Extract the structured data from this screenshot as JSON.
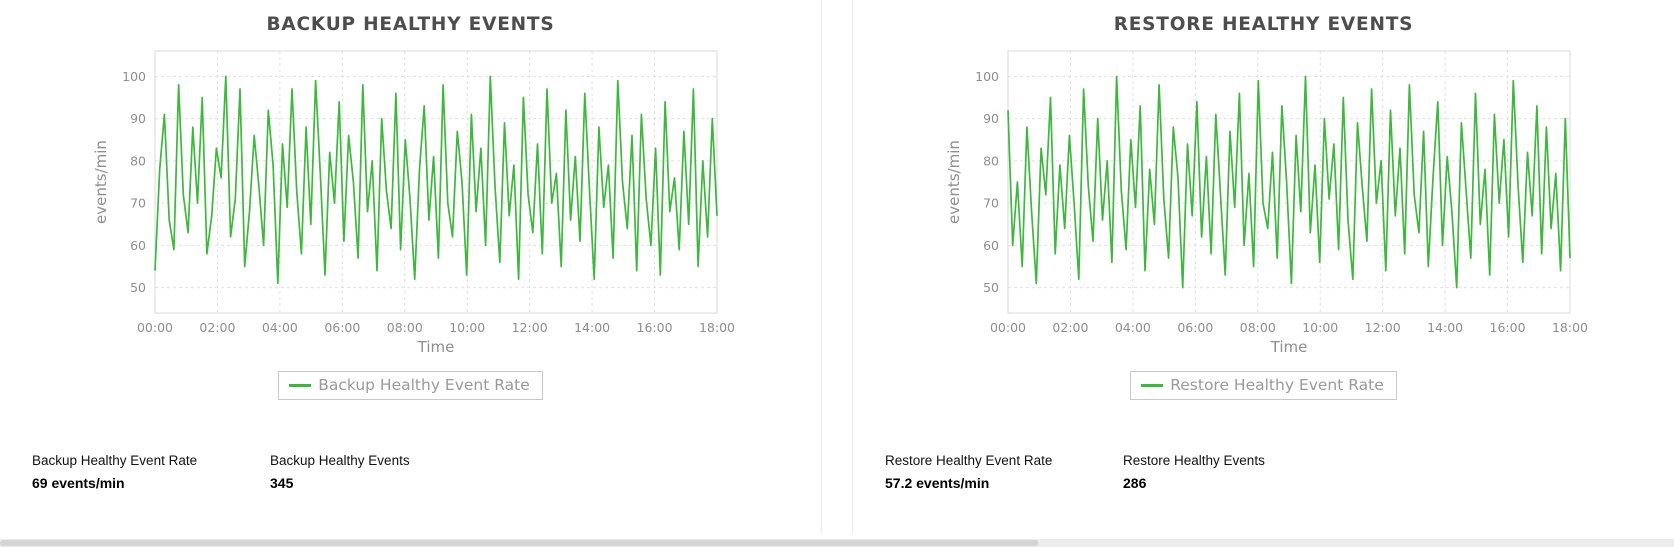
{
  "chart_data": [
    {
      "type": "line",
      "title": "BACKUP HEALTHY EVENTS",
      "xlabel": "Time",
      "ylabel": "events/min",
      "ylim": [
        44,
        106
      ],
      "x_ticks": [
        "00:00",
        "02:00",
        "04:00",
        "06:00",
        "08:00",
        "10:00",
        "12:00",
        "14:00",
        "16:00",
        "18:00"
      ],
      "y_ticks": [
        50,
        60,
        70,
        80,
        90,
        100
      ],
      "grid": true,
      "legend_position": "bottom",
      "series": [
        {
          "name": "Backup Healthy Event Rate",
          "color": "#3eb73e",
          "values": [
            54,
            78,
            91,
            66,
            59,
            98,
            72,
            63,
            88,
            70,
            95,
            58,
            67,
            83,
            76,
            100,
            62,
            71,
            97,
            55,
            68,
            86,
            74,
            60,
            92,
            79,
            51,
            84,
            69,
            97,
            73,
            58,
            88,
            65,
            99,
            77,
            53,
            82,
            70,
            94,
            61,
            86,
            75,
            57,
            98,
            68,
            80,
            54,
            90,
            73,
            64,
            96,
            59,
            85,
            71,
            52,
            78,
            93,
            66,
            81,
            57,
            98,
            70,
            62,
            87,
            75,
            53,
            91,
            68,
            83,
            60,
            100,
            74,
            56,
            89,
            67,
            79,
            52,
            95,
            72,
            63,
            84,
            58,
            97,
            70,
            77,
            55,
            92,
            66,
            81,
            61,
            96,
            73,
            52,
            88,
            69,
            79,
            57,
            99,
            75,
            64,
            86,
            54,
            91,
            71,
            60,
            83,
            53,
            94,
            68,
            76,
            59,
            87,
            65,
            97,
            55,
            80,
            62,
            90,
            67
          ]
        }
      ]
    },
    {
      "type": "line",
      "title": "RESTORE HEALTHY EVENTS",
      "xlabel": "Time",
      "ylabel": "events/min",
      "ylim": [
        44,
        106
      ],
      "x_ticks": [
        "00:00",
        "02:00",
        "04:00",
        "06:00",
        "08:00",
        "10:00",
        "12:00",
        "14:00",
        "16:00",
        "18:00"
      ],
      "y_ticks": [
        50,
        60,
        70,
        80,
        90,
        100
      ],
      "grid": true,
      "legend_position": "bottom",
      "series": [
        {
          "name": "Restore Healthy Event Rate",
          "color": "#3eb73e",
          "values": [
            92,
            60,
            75,
            55,
            88,
            68,
            51,
            83,
            72,
            95,
            58,
            79,
            64,
            86,
            70,
            52,
            97,
            74,
            61,
            90,
            66,
            80,
            56,
            100,
            73,
            59,
            85,
            69,
            93,
            54,
            78,
            65,
            98,
            71,
            57,
            88,
            76,
            50,
            84,
            67,
            94,
            62,
            81,
            58,
            91,
            72,
            53,
            87,
            69,
            96,
            60,
            77,
            55,
            99,
            70,
            64,
            82,
            57,
            93,
            75,
            51,
            86,
            68,
            100,
            63,
            79,
            56,
            90,
            71,
            84,
            59,
            95,
            66,
            52,
            89,
            74,
            61,
            97,
            70,
            80,
            54,
            92,
            67,
            83,
            58,
            98,
            72,
            63,
            87,
            55,
            76,
            94,
            60,
            81,
            68,
            50,
            89,
            73,
            57,
            96,
            65,
            78,
            53,
            91,
            70,
            85,
            62,
            99,
            74,
            56,
            82,
            67,
            93,
            58,
            88,
            64,
            77,
            54,
            90,
            57
          ]
        }
      ]
    }
  ],
  "stats_panels": [
    {
      "stats": [
        {
          "label": "Backup Healthy Event Rate",
          "value": "69 events/min"
        },
        {
          "label": "Backup Healthy Events",
          "value": "345"
        }
      ]
    },
    {
      "stats": [
        {
          "label": "Restore Healthy Event Rate",
          "value": "57.2 events/min"
        },
        {
          "label": "Restore Healthy Events",
          "value": "286"
        }
      ]
    }
  ],
  "colors": {
    "line_green": "#3eb73e"
  }
}
